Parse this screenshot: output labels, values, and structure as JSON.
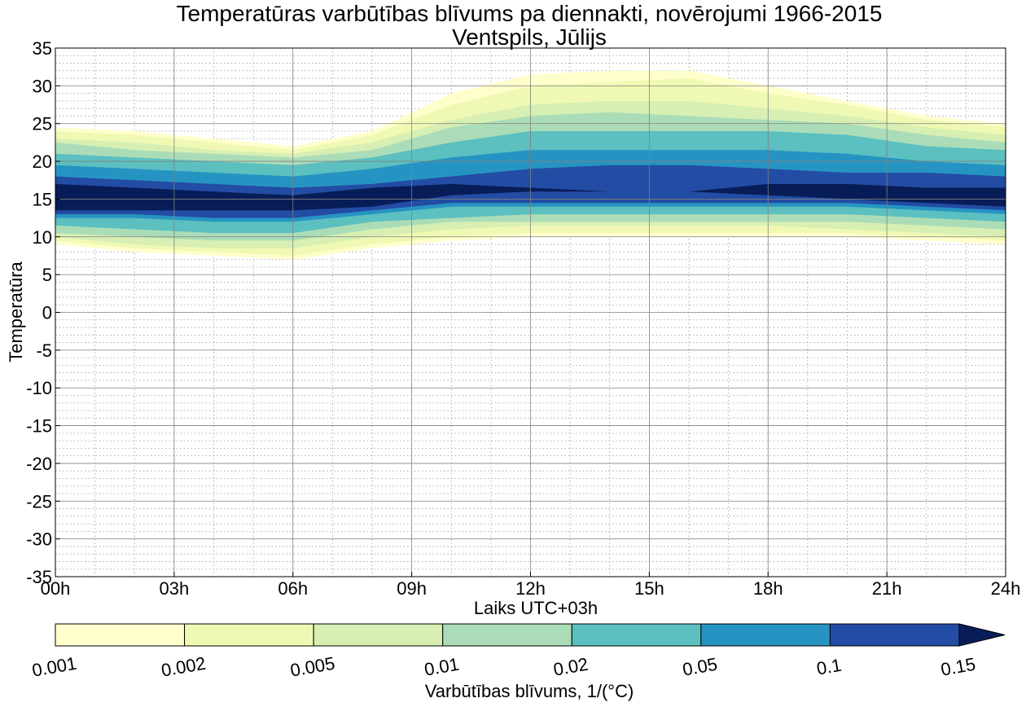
{
  "chart_data": {
    "type": "heatmap",
    "title": "Temperatūras varbūtības blīvums pa diennakti, novērojumi 1966-2015",
    "subtitle": "Ventspils, Jūlijs",
    "xlabel": "Laiks UTC+03h",
    "ylabel": "Temperatūra",
    "colorbar_label": "Varbūtības blīvums, 1/(°C)",
    "x_ticks": [
      "00h",
      "03h",
      "06h",
      "09h",
      "12h",
      "15h",
      "18h",
      "21h",
      "24h"
    ],
    "xlim": [
      0,
      24
    ],
    "y_ticks": [
      35,
      30,
      25,
      20,
      15,
      10,
      5,
      0,
      -5,
      -10,
      -15,
      -20,
      -25,
      -30,
      -35
    ],
    "ylim": [
      -35,
      35
    ],
    "grid": true,
    "levels": [
      "0.001",
      "0.002",
      "0.005",
      "0.01",
      "0.02",
      "0.05",
      "0.1",
      "0.15"
    ],
    "level_colors": [
      "#ffffcc",
      "#f0f9b3",
      "#d7efb3",
      "#abdcb8",
      "#5cbfc0",
      "#2694c2",
      "#234ca4",
      "#081d58"
    ],
    "hours": [
      0,
      2,
      4,
      6,
      8,
      10,
      12,
      14,
      16,
      18,
      20,
      22,
      24
    ],
    "bands": [
      {
        "level": 0.001,
        "lower": [
          9.0,
          8.0,
          7.5,
          7.0,
          8.5,
          9.5,
          10.0,
          10.0,
          10.0,
          10.0,
          10.0,
          9.5,
          9.0
        ],
        "upper": [
          24.5,
          24.0,
          23.0,
          22.0,
          24.0,
          29.0,
          31.5,
          32.0,
          32.0,
          30.0,
          28.0,
          26.0,
          25.0
        ]
      },
      {
        "level": 0.002,
        "lower": [
          9.5,
          8.5,
          8.0,
          7.5,
          9.0,
          10.0,
          10.5,
          10.5,
          10.5,
          10.5,
          10.5,
          10.0,
          9.5
        ],
        "upper": [
          24.0,
          23.5,
          22.5,
          21.5,
          23.5,
          27.5,
          30.0,
          30.5,
          31.0,
          29.0,
          27.5,
          25.5,
          24.5
        ]
      },
      {
        "level": 0.005,
        "lower": [
          10.0,
          9.0,
          8.5,
          8.5,
          10.0,
          11.0,
          11.5,
          11.5,
          11.5,
          11.5,
          11.0,
          10.5,
          10.0
        ],
        "upper": [
          23.0,
          22.5,
          21.5,
          21.0,
          22.5,
          25.5,
          27.5,
          28.0,
          28.0,
          27.0,
          26.0,
          24.5,
          23.5
        ]
      },
      {
        "level": 0.01,
        "lower": [
          10.5,
          10.0,
          9.5,
          9.5,
          11.0,
          12.0,
          12.0,
          12.0,
          12.0,
          12.0,
          12.0,
          11.5,
          11.0
        ],
        "upper": [
          22.5,
          21.5,
          21.0,
          20.5,
          21.5,
          24.5,
          26.0,
          26.5,
          26.0,
          25.5,
          25.0,
          23.5,
          22.5
        ]
      },
      {
        "level": 0.02,
        "lower": [
          11.5,
          11.0,
          10.5,
          10.5,
          12.0,
          12.5,
          13.0,
          13.0,
          13.0,
          13.0,
          13.0,
          12.5,
          12.0
        ],
        "upper": [
          21.0,
          20.5,
          20.0,
          19.5,
          20.5,
          22.5,
          24.0,
          24.0,
          24.0,
          24.0,
          23.5,
          22.0,
          21.5
        ]
      },
      {
        "level": 0.05,
        "lower": [
          12.5,
          12.5,
          12.0,
          12.0,
          13.0,
          14.0,
          14.0,
          14.0,
          14.0,
          14.0,
          14.0,
          13.5,
          13.0
        ],
        "upper": [
          19.5,
          19.0,
          18.5,
          18.0,
          19.0,
          20.5,
          21.5,
          21.5,
          21.5,
          21.5,
          21.0,
          20.0,
          19.5
        ]
      },
      {
        "level": 0.1,
        "lower": [
          13.0,
          13.0,
          12.5,
          12.5,
          13.5,
          14.5,
          14.5,
          14.5,
          14.5,
          14.5,
          14.5,
          14.0,
          13.5
        ],
        "upper": [
          18.0,
          17.5,
          17.0,
          16.5,
          17.0,
          18.0,
          19.0,
          19.5,
          19.5,
          19.0,
          18.5,
          18.5,
          18.0
        ]
      },
      {
        "level": 0.15,
        "lower": [
          13.5,
          13.5,
          13.5,
          13.5,
          14.0,
          15.5,
          16.0,
          16.0,
          16.0,
          15.5,
          15.0,
          14.5,
          14.0
        ],
        "upper": [
          17.0,
          16.5,
          16.0,
          15.5,
          16.5,
          17.0,
          16.5,
          16.0,
          16.0,
          17.0,
          17.0,
          16.5,
          16.5
        ]
      }
    ]
  }
}
